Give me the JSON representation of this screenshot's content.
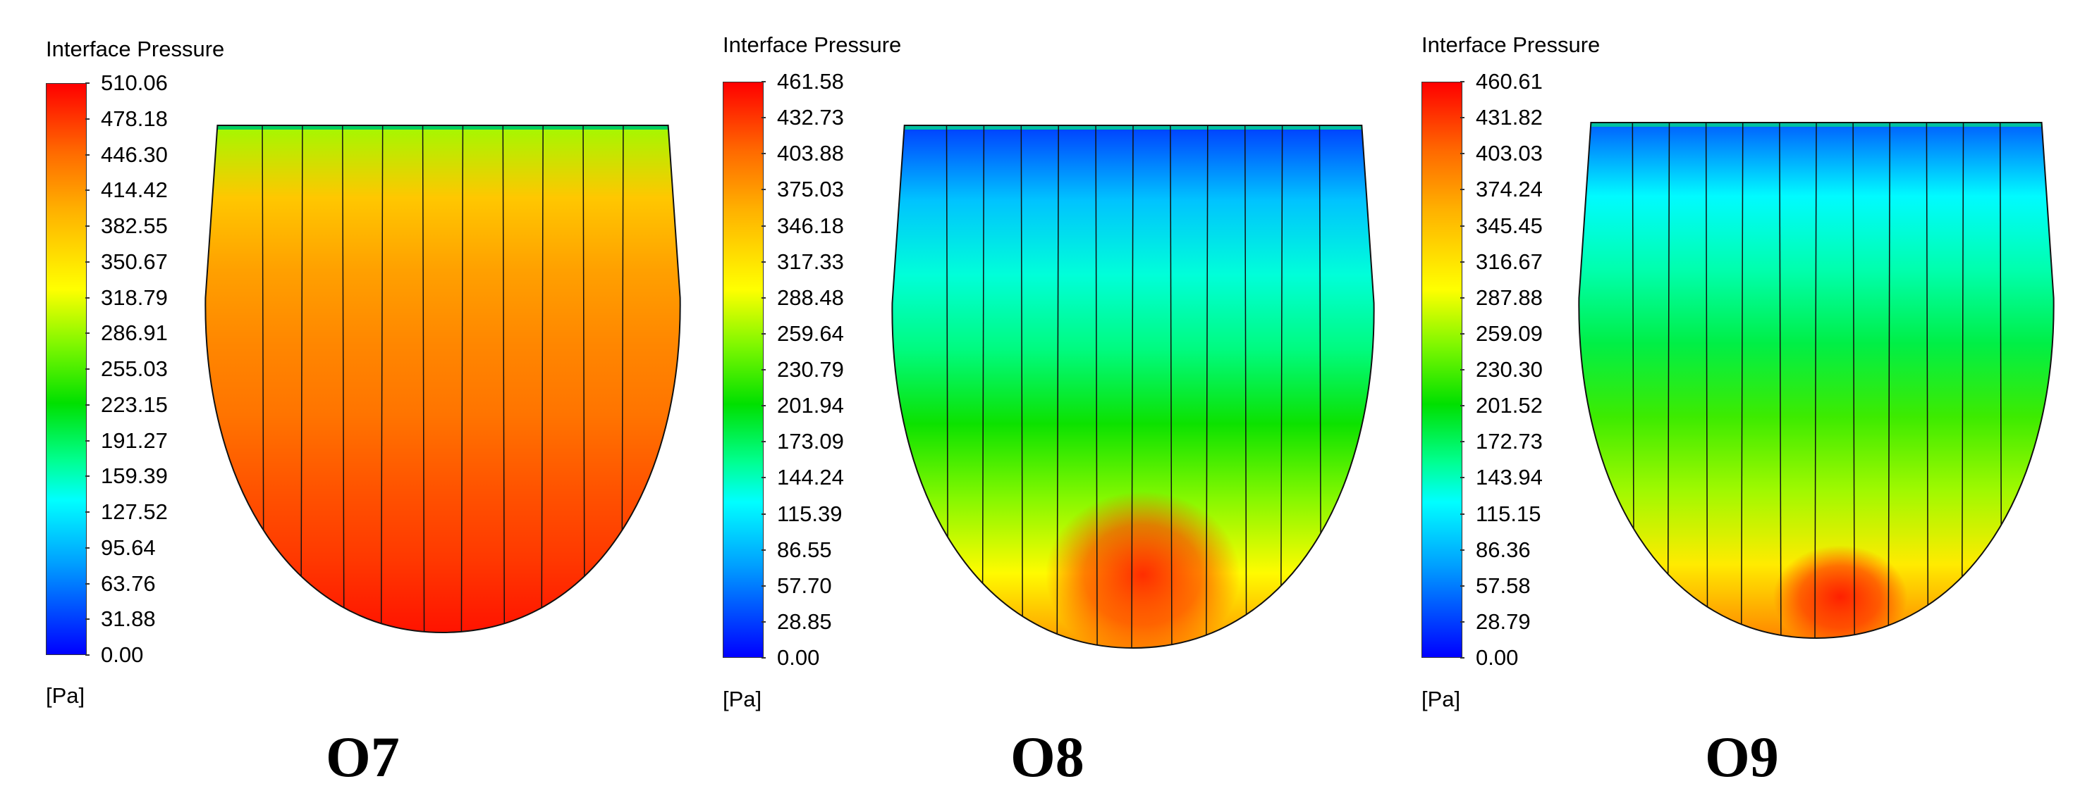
{
  "chart_data": [
    {
      "type": "heatmap",
      "title": "Interface Pressure",
      "unit": "[Pa]",
      "caption": "O7",
      "colorbar_range": [
        0.0,
        510.06
      ],
      "colorbar_ticks": [
        "510.06",
        "478.18",
        "446.30",
        "414.42",
        "382.55",
        "350.67",
        "318.79",
        "286.91",
        "255.03",
        "223.15",
        "191.27",
        "159.39",
        "127.52",
        "95.64",
        "63.76",
        "31.88",
        "0.00"
      ],
      "colorscale": [
        "#0000ff",
        "#00a0ff",
        "#00ffff",
        "#00ff90",
        "#00e000",
        "#7cf700",
        "#ffff00",
        "#ffb000",
        "#ff6a00",
        "#ff0000"
      ],
      "strip_count": 11,
      "pressure_profile": [
        {
          "v": 300
        },
        {
          "v": 380
        },
        {
          "v": 410
        },
        {
          "v": 430
        },
        {
          "v": 445
        },
        {
          "v": 465
        },
        {
          "v": 480
        },
        {
          "v": 500
        }
      ],
      "hotspots": []
    },
    {
      "type": "heatmap",
      "title": "Interface Pressure",
      "unit": "[Pa]",
      "caption": "O8",
      "colorbar_range": [
        0.0,
        461.58
      ],
      "colorbar_ticks": [
        "461.58",
        "432.73",
        "403.88",
        "375.03",
        "346.18",
        "317.33",
        "288.48",
        "259.64",
        "230.79",
        "201.94",
        "173.09",
        "144.24",
        "115.39",
        "86.55",
        "57.70",
        "28.85",
        "0.00"
      ],
      "colorscale": [
        "#0000ff",
        "#00a0ff",
        "#00ffff",
        "#00ff90",
        "#00e000",
        "#7cf700",
        "#ffff00",
        "#ffb000",
        "#ff6a00",
        "#ff0000"
      ],
      "strip_count": 12,
      "pressure_profile": [
        {
          "v": 20
        },
        {
          "v": 70
        },
        {
          "v": 120
        },
        {
          "v": 160
        },
        {
          "v": 210
        },
        {
          "v": 260
        },
        {
          "v": 310
        },
        {
          "v": 380
        }
      ],
      "hotspots": [
        {
          "v": 440,
          "cx": 0.52,
          "cy": 0.86,
          "rx": 0.2,
          "ry": 0.16
        }
      ]
    },
    {
      "type": "heatmap",
      "title": "Interface Pressure",
      "unit": "[Pa]",
      "caption": "O9",
      "colorbar_range": [
        0.0,
        460.61
      ],
      "colorbar_ticks": [
        "460.61",
        "431.82",
        "403.03",
        "374.24",
        "345.45",
        "316.67",
        "287.88",
        "259.09",
        "230.30",
        "201.52",
        "172.73",
        "143.94",
        "115.15",
        "86.36",
        "57.58",
        "28.79",
        "0.00"
      ],
      "colorscale": [
        "#0000ff",
        "#00a0ff",
        "#00ffff",
        "#00ff90",
        "#00e000",
        "#7cf700",
        "#ffff00",
        "#ffb000",
        "#ff6a00",
        "#ff0000"
      ],
      "strip_count": 12,
      "pressure_profile": [
        {
          "v": 30
        },
        {
          "v": 100
        },
        {
          "v": 140
        },
        {
          "v": 180
        },
        {
          "v": 230
        },
        {
          "v": 270
        },
        {
          "v": 320
        },
        {
          "v": 390
        }
      ],
      "hotspots": [
        {
          "v": 445,
          "cx": 0.55,
          "cy": 0.92,
          "rx": 0.14,
          "ry": 0.1
        }
      ]
    }
  ]
}
